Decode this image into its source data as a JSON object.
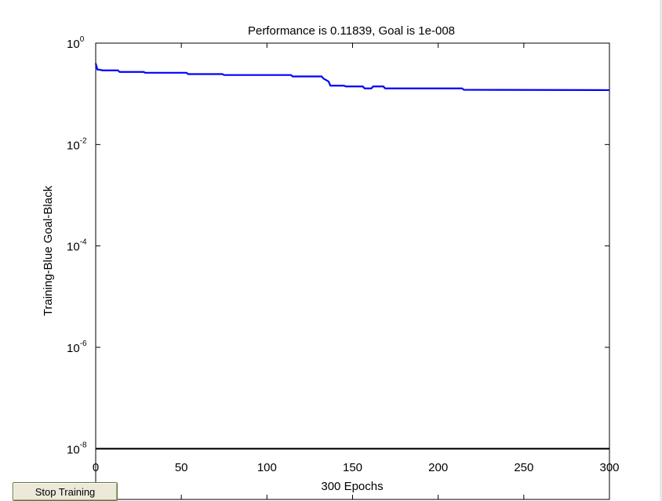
{
  "window": {
    "stop_button_label": "Stop Training"
  },
  "chart_data": {
    "type": "line",
    "title": "Performance is 0.11839, Goal is 1e-008",
    "xlabel": "300 Epochs",
    "ylabel": "Training-Blue  Goal-Black",
    "xlim": [
      0,
      300
    ],
    "ylim": [
      1e-09,
      1
    ],
    "yscale": "log",
    "grid": false,
    "x_ticks": [
      {
        "value": 0,
        "label": "0"
      },
      {
        "value": 50,
        "label": "50"
      },
      {
        "value": 100,
        "label": "100"
      },
      {
        "value": 150,
        "label": "150"
      },
      {
        "value": 200,
        "label": "200"
      },
      {
        "value": 250,
        "label": "250"
      },
      {
        "value": 300,
        "label": "300"
      }
    ],
    "y_ticks": [
      {
        "value": 1,
        "base": "10",
        "exp": "0"
      },
      {
        "value": 0.01,
        "base": "10",
        "exp": "-2"
      },
      {
        "value": 0.0001,
        "base": "10",
        "exp": "-4"
      },
      {
        "value": 1e-06,
        "base": "10",
        "exp": "-6"
      },
      {
        "value": 1e-08,
        "base": "10",
        "exp": "-8"
      }
    ],
    "series": [
      {
        "name": "Training",
        "color": "#0000ff",
        "x": [
          0,
          1,
          2,
          4,
          7,
          13,
          14,
          28,
          29,
          53,
          54,
          74,
          75,
          114,
          115,
          132,
          133,
          136,
          137,
          145,
          146,
          156,
          157,
          161,
          162,
          168,
          169,
          214,
          215,
          300
        ],
        "y": [
          0.4,
          0.3,
          0.3,
          0.29,
          0.29,
          0.29,
          0.27,
          0.27,
          0.26,
          0.26,
          0.245,
          0.245,
          0.235,
          0.235,
          0.22,
          0.22,
          0.2,
          0.175,
          0.145,
          0.145,
          0.14,
          0.14,
          0.128,
          0.128,
          0.14,
          0.14,
          0.128,
          0.128,
          0.12,
          0.11839
        ]
      },
      {
        "name": "Goal",
        "color": "#000000",
        "x": [
          0,
          300
        ],
        "y": [
          1e-08,
          1e-08
        ]
      }
    ]
  }
}
